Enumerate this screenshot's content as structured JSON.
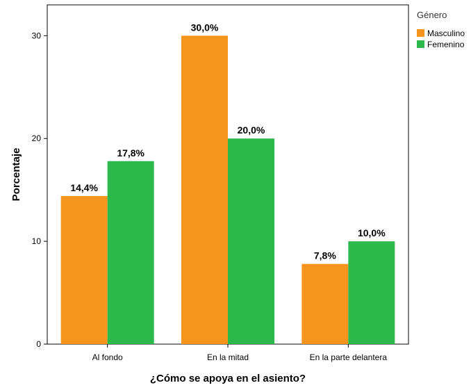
{
  "chart_data": {
    "type": "bar",
    "title": "",
    "xlabel": "¿Cómo se apoya en el asiento?",
    "ylabel": "Porcentaje",
    "ylim": [
      0,
      33
    ],
    "yticks": [
      0,
      10,
      20,
      30
    ],
    "grid": false,
    "legend_position": "top-right",
    "legend_title": "Género",
    "categories": [
      "Al fondo",
      "En la mitad",
      "En la parte delantera"
    ],
    "series": [
      {
        "name": "Masculino",
        "color": "#F7941D",
        "values": [
          14.4,
          30.0,
          7.8
        ],
        "labels": [
          "14,4%",
          "30,0%",
          "7,8%"
        ]
      },
      {
        "name": "Femenino",
        "color": "#2DB84B",
        "values": [
          17.8,
          20.0,
          10.0
        ],
        "labels": [
          "17,8%",
          "20,0%",
          "10,0%"
        ]
      }
    ]
  }
}
